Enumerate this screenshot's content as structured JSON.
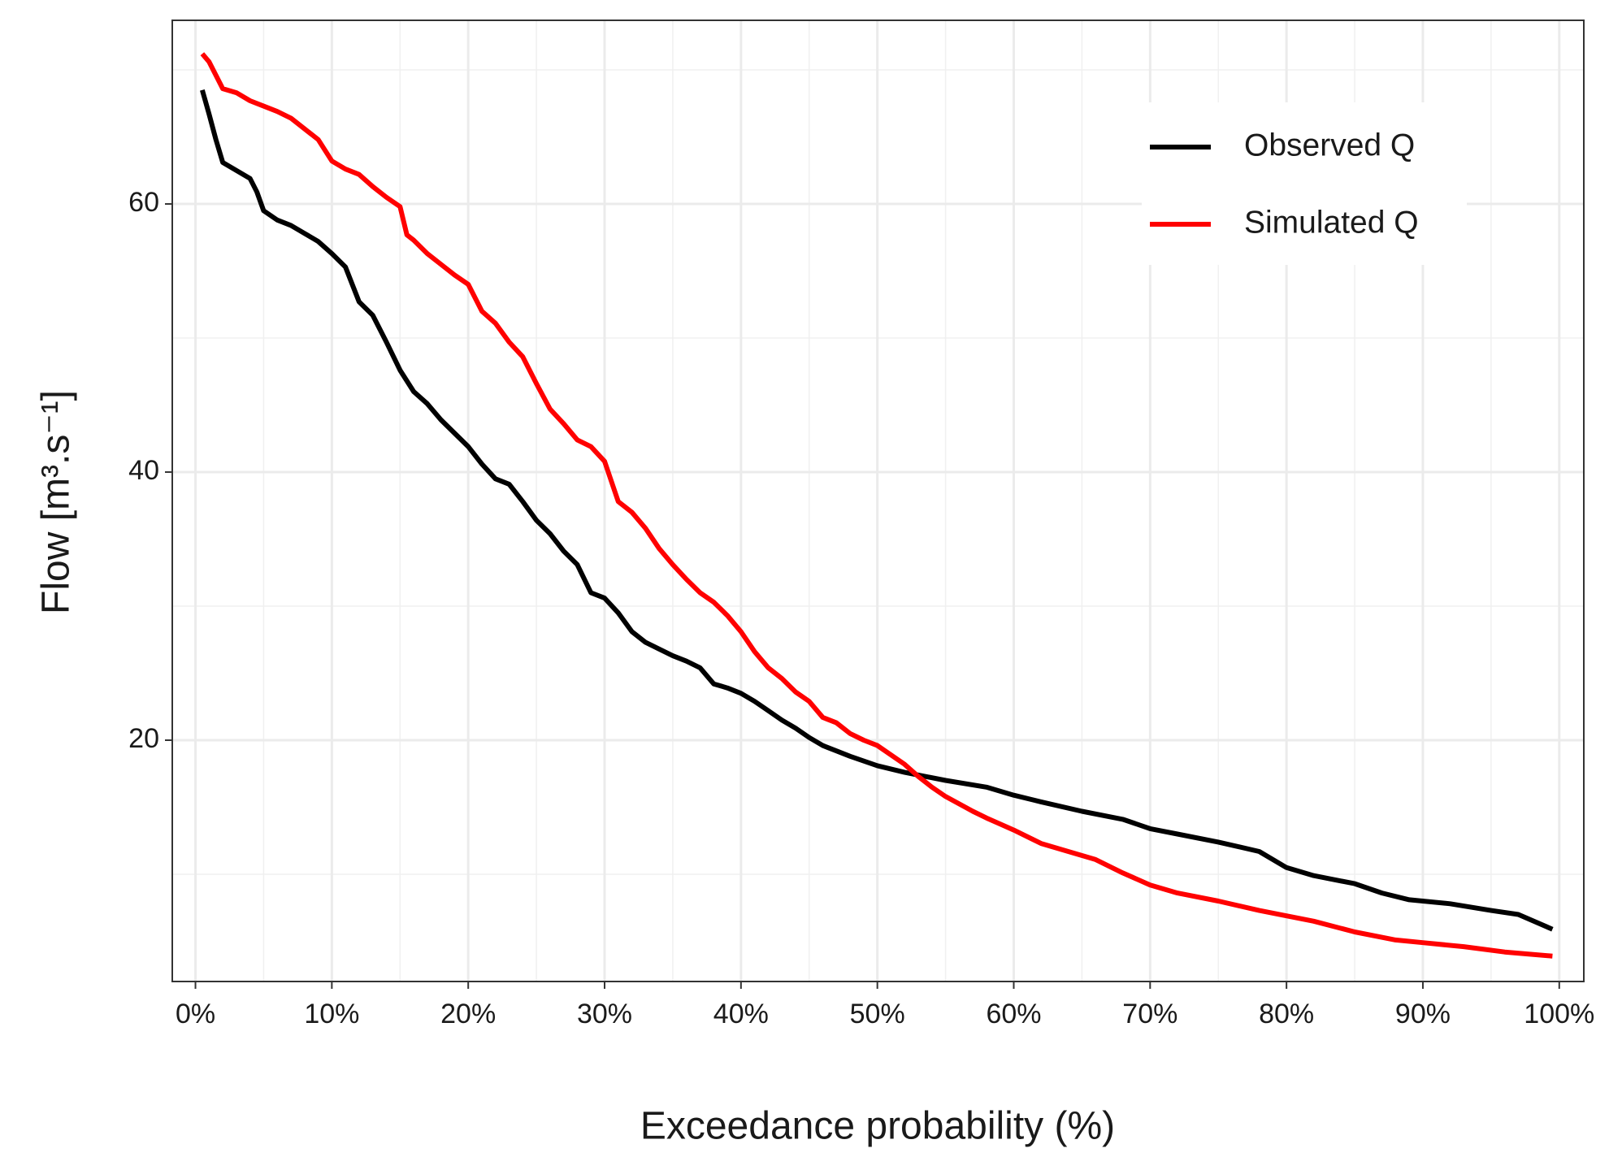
{
  "chart_data": {
    "type": "line",
    "x_label": "Exceedance probability (%)",
    "y_label": "Flow [m³.s⁻¹]",
    "xlim": [
      -1.7,
      101.8
    ],
    "ylim": [
      2.0,
      73.7
    ],
    "xticks": [
      {
        "value": 0,
        "label": "0%"
      },
      {
        "value": 10,
        "label": "10%"
      },
      {
        "value": 20,
        "label": "20%"
      },
      {
        "value": 30,
        "label": "30%"
      },
      {
        "value": 40,
        "label": "40%"
      },
      {
        "value": 50,
        "label": "50%"
      },
      {
        "value": 60,
        "label": "60%"
      },
      {
        "value": 70,
        "label": "70%"
      },
      {
        "value": 80,
        "label": "80%"
      },
      {
        "value": 90,
        "label": "90%"
      },
      {
        "value": 100,
        "label": "100%"
      }
    ],
    "yticks": [
      20,
      40,
      60
    ],
    "x_minor_ticks": [
      5,
      15,
      25,
      35,
      45,
      55,
      65,
      75,
      85,
      95
    ],
    "y_minor_ticks": [
      10,
      30,
      50,
      70
    ],
    "grid": true,
    "legend": "top-right",
    "series": [
      {
        "name": "Observed Q",
        "color": "#000000",
        "x": [
          0.5,
          1,
          1.5,
          2,
          3,
          4,
          4.5,
          5,
          6,
          7,
          8,
          9,
          10,
          11,
          12,
          13,
          14,
          15,
          16,
          17,
          18,
          19,
          20,
          21,
          22,
          23,
          24,
          25,
          26,
          27,
          28,
          29,
          30,
          31,
          32,
          33,
          34,
          35,
          36,
          37,
          38,
          39,
          40,
          41,
          42,
          43,
          44,
          45,
          46,
          47,
          48,
          50,
          52,
          55,
          58,
          60,
          62,
          65,
          68,
          70,
          72,
          75,
          78,
          80,
          82,
          85,
          87,
          89,
          92,
          95,
          97,
          99.5
        ],
        "values": [
          68.5,
          66.7,
          64.8,
          63.1,
          62.5,
          61.9,
          60.9,
          59.5,
          58.8,
          58.4,
          57.8,
          57.2,
          56.3,
          55.3,
          52.7,
          51.7,
          49.7,
          47.6,
          46.0,
          45.1,
          43.9,
          42.9,
          41.9,
          40.6,
          39.5,
          39.1,
          37.8,
          36.4,
          35.4,
          34.1,
          33.1,
          31.0,
          30.6,
          29.5,
          28.1,
          27.3,
          26.8,
          26.3,
          25.9,
          25.4,
          24.2,
          23.9,
          23.5,
          22.9,
          22.2,
          21.5,
          20.9,
          20.2,
          19.6,
          19.2,
          18.8,
          18.1,
          17.6,
          17.0,
          16.5,
          15.9,
          15.4,
          14.7,
          14.1,
          13.4,
          13.0,
          12.4,
          11.7,
          10.5,
          9.9,
          9.3,
          8.6,
          8.1,
          7.8,
          7.3,
          7.0,
          5.9
        ]
      },
      {
        "name": "Simulated Q",
        "color": "#ff0000",
        "x": [
          0.5,
          1,
          2,
          3,
          4,
          5,
          6,
          7,
          8,
          9,
          10,
          11,
          12,
          13,
          14,
          15,
          15.5,
          16,
          17,
          18,
          19,
          20,
          21,
          22,
          23,
          24,
          25,
          26,
          27,
          28,
          29,
          30,
          31,
          32,
          33,
          34,
          35,
          36,
          37,
          38,
          39,
          40,
          41,
          42,
          43,
          44,
          45,
          46,
          47,
          48,
          49,
          50,
          52,
          53,
          54,
          55,
          57,
          58,
          60,
          62,
          64,
          66,
          68,
          70,
          72,
          75,
          78,
          80,
          82,
          85,
          88,
          90,
          93,
          96,
          99.5
        ],
        "values": [
          71.2,
          70.6,
          68.6,
          68.3,
          67.7,
          67.3,
          66.9,
          66.4,
          65.6,
          64.8,
          63.2,
          62.6,
          62.2,
          61.3,
          60.5,
          59.8,
          57.7,
          57.3,
          56.3,
          55.5,
          54.7,
          54.0,
          52.0,
          51.1,
          49.7,
          48.6,
          46.6,
          44.7,
          43.6,
          42.4,
          41.9,
          40.8,
          37.8,
          37.0,
          35.8,
          34.3,
          33.1,
          32.0,
          31.0,
          30.3,
          29.3,
          28.1,
          26.6,
          25.4,
          24.6,
          23.6,
          22.9,
          21.7,
          21.3,
          20.5,
          20.0,
          19.6,
          18.2,
          17.3,
          16.5,
          15.8,
          14.7,
          14.2,
          13.3,
          12.3,
          11.7,
          11.1,
          10.1,
          9.2,
          8.6,
          8.0,
          7.3,
          6.9,
          6.5,
          5.7,
          5.1,
          4.9,
          4.6,
          4.2,
          3.9
        ]
      }
    ]
  }
}
